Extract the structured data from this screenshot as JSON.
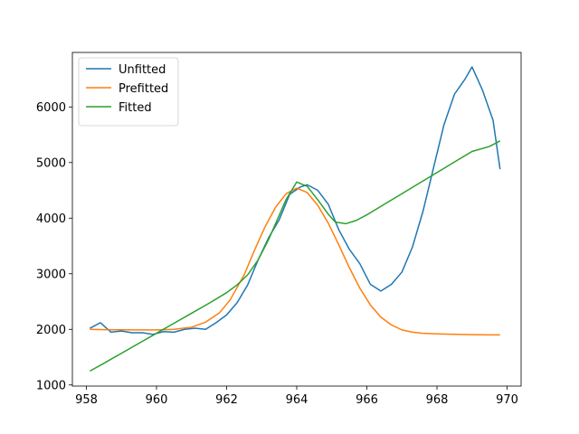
{
  "chart_data": {
    "type": "line",
    "title": "",
    "xlabel": "",
    "ylabel": "",
    "xlim": [
      957.6,
      970.4
    ],
    "ylim": [
      980,
      6980
    ],
    "xticks": [
      958,
      960,
      962,
      964,
      966,
      968,
      970
    ],
    "yticks": [
      1000,
      2000,
      3000,
      4000,
      5000,
      6000
    ],
    "legend_position": "top-left",
    "grid": false,
    "series": [
      {
        "name": "Unfitted",
        "color": "#1f77b4",
        "points": [
          [
            958.1,
            2020
          ],
          [
            958.4,
            2120
          ],
          [
            958.7,
            1950
          ],
          [
            959.0,
            1970
          ],
          [
            959.3,
            1940
          ],
          [
            959.6,
            1940
          ],
          [
            959.9,
            1910
          ],
          [
            960.2,
            1960
          ],
          [
            960.5,
            1950
          ],
          [
            960.8,
            2000
          ],
          [
            961.1,
            2020
          ],
          [
            961.4,
            2000
          ],
          [
            961.7,
            2120
          ],
          [
            962.0,
            2260
          ],
          [
            962.3,
            2480
          ],
          [
            962.6,
            2800
          ],
          [
            962.9,
            3250
          ],
          [
            963.2,
            3650
          ],
          [
            963.5,
            3970
          ],
          [
            963.8,
            4430
          ],
          [
            964.1,
            4560
          ],
          [
            964.3,
            4600
          ],
          [
            964.6,
            4500
          ],
          [
            964.9,
            4250
          ],
          [
            965.2,
            3790
          ],
          [
            965.5,
            3440
          ],
          [
            965.8,
            3180
          ],
          [
            966.1,
            2810
          ],
          [
            966.4,
            2690
          ],
          [
            966.7,
            2810
          ],
          [
            967.0,
            3030
          ],
          [
            967.3,
            3480
          ],
          [
            967.6,
            4120
          ],
          [
            967.9,
            4900
          ],
          [
            968.2,
            5680
          ],
          [
            968.5,
            6230
          ],
          [
            968.8,
            6500
          ],
          [
            969.0,
            6720
          ],
          [
            969.3,
            6300
          ],
          [
            969.6,
            5760
          ],
          [
            969.8,
            4880
          ]
        ]
      },
      {
        "name": "Prefitted",
        "color": "#ff7f0e",
        "points": [
          [
            958.1,
            2000
          ],
          [
            958.5,
            1995
          ],
          [
            959.0,
            1992
          ],
          [
            959.5,
            1990
          ],
          [
            960.0,
            1990
          ],
          [
            960.5,
            2000
          ],
          [
            961.0,
            2040
          ],
          [
            961.4,
            2130
          ],
          [
            961.8,
            2300
          ],
          [
            962.1,
            2530
          ],
          [
            962.5,
            2980
          ],
          [
            962.8,
            3430
          ],
          [
            963.1,
            3850
          ],
          [
            963.4,
            4200
          ],
          [
            963.7,
            4440
          ],
          [
            964.0,
            4540
          ],
          [
            964.3,
            4460
          ],
          [
            964.6,
            4230
          ],
          [
            964.9,
            3910
          ],
          [
            965.2,
            3520
          ],
          [
            965.5,
            3110
          ],
          [
            965.8,
            2740
          ],
          [
            966.1,
            2440
          ],
          [
            966.4,
            2220
          ],
          [
            966.7,
            2080
          ],
          [
            967.0,
            1990
          ],
          [
            967.3,
            1950
          ],
          [
            967.6,
            1930
          ],
          [
            968.0,
            1920
          ],
          [
            968.5,
            1910
          ],
          [
            969.0,
            1905
          ],
          [
            969.5,
            1900
          ],
          [
            969.8,
            1900
          ]
        ]
      },
      {
        "name": "Fitted",
        "color": "#2ca02c",
        "points": [
          [
            958.1,
            1250
          ],
          [
            958.5,
            1390
          ],
          [
            959.0,
            1570
          ],
          [
            959.5,
            1750
          ],
          [
            960.0,
            1930
          ],
          [
            960.5,
            2110
          ],
          [
            961.0,
            2290
          ],
          [
            961.5,
            2470
          ],
          [
            962.0,
            2660
          ],
          [
            962.3,
            2800
          ],
          [
            962.6,
            2980
          ],
          [
            962.9,
            3250
          ],
          [
            963.2,
            3620
          ],
          [
            963.5,
            4050
          ],
          [
            963.7,
            4340
          ],
          [
            964.0,
            4650
          ],
          [
            964.3,
            4570
          ],
          [
            964.6,
            4330
          ],
          [
            964.9,
            4070
          ],
          [
            965.1,
            3930
          ],
          [
            965.4,
            3900
          ],
          [
            965.7,
            3960
          ],
          [
            966.0,
            4060
          ],
          [
            966.5,
            4250
          ],
          [
            967.0,
            4440
          ],
          [
            967.5,
            4630
          ],
          [
            968.0,
            4820
          ],
          [
            968.5,
            5010
          ],
          [
            969.0,
            5200
          ],
          [
            969.5,
            5290
          ],
          [
            969.8,
            5390
          ]
        ]
      }
    ]
  }
}
